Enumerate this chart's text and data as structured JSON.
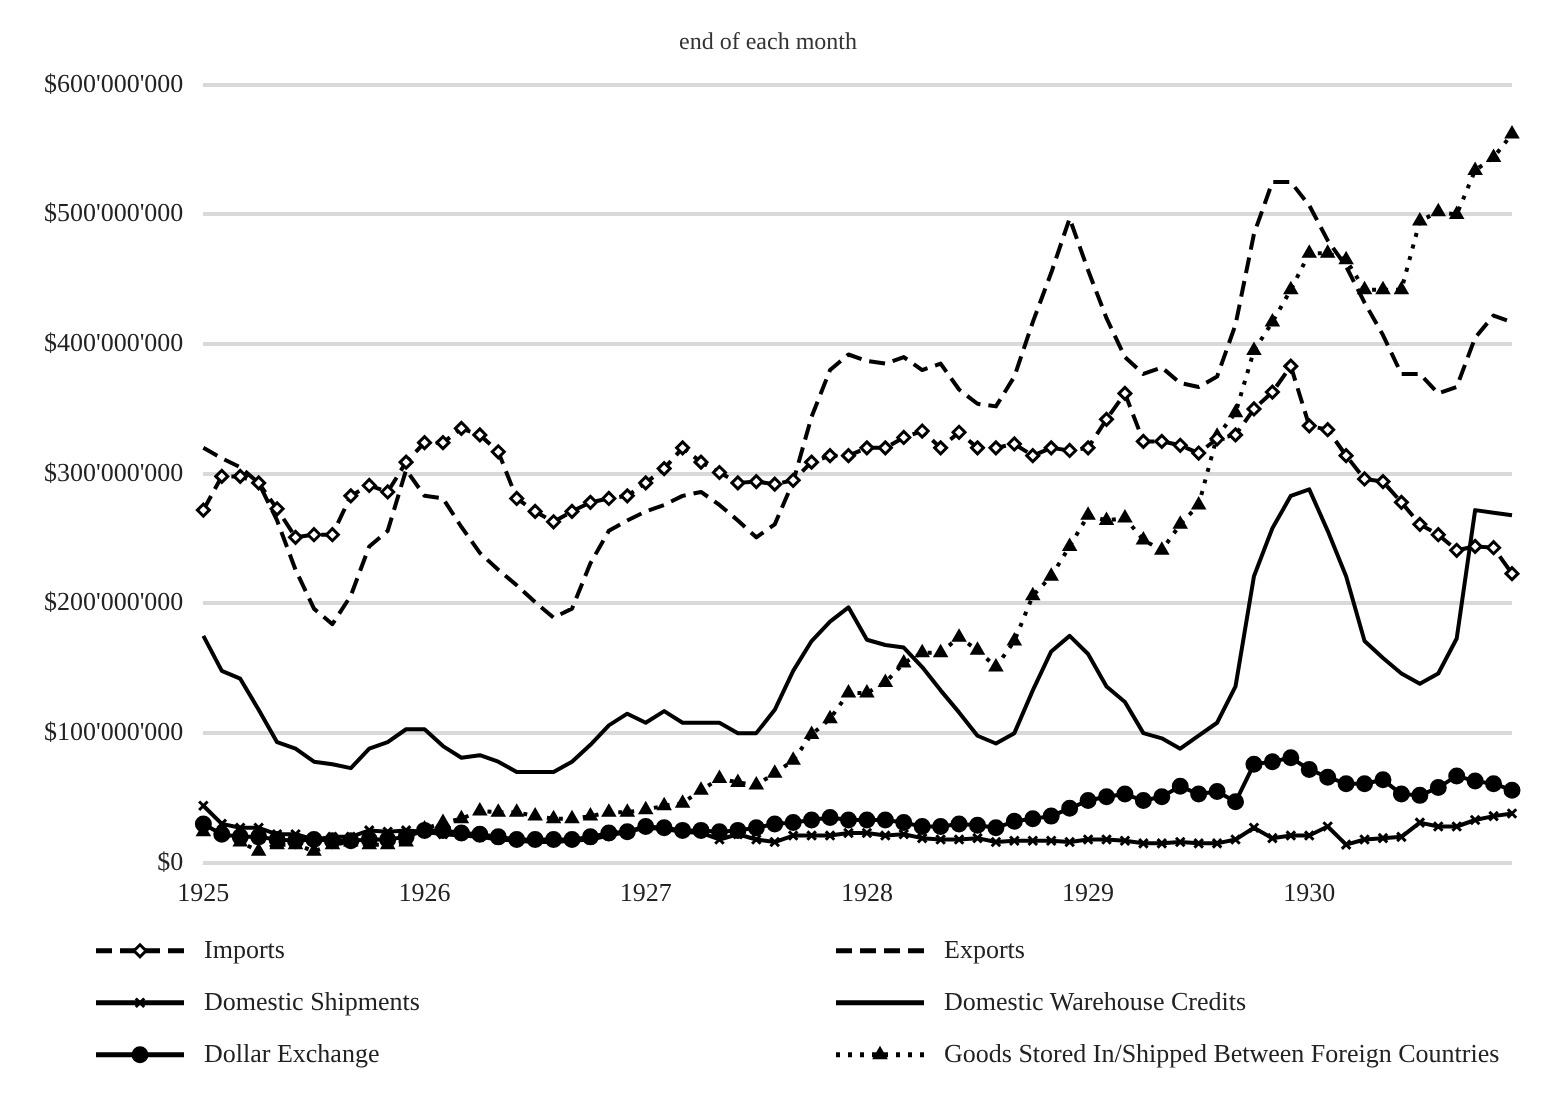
{
  "chart_data": {
    "type": "line",
    "title": "end of each month",
    "categories": [
      "1925",
      null,
      null,
      null,
      null,
      null,
      null,
      null,
      null,
      null,
      null,
      null,
      "1926",
      null,
      null,
      null,
      null,
      null,
      null,
      null,
      null,
      null,
      null,
      null,
      "1927",
      null,
      null,
      null,
      null,
      null,
      null,
      null,
      null,
      null,
      null,
      null,
      "1928",
      null,
      null,
      null,
      null,
      null,
      null,
      null,
      null,
      null,
      null,
      null,
      "1929",
      null,
      null,
      null,
      null,
      null,
      null,
      null,
      null,
      null,
      null,
      null,
      "1930",
      null,
      null,
      null,
      null,
      null,
      null,
      null,
      null,
      null,
      null,
      null
    ],
    "ylim": [
      0,
      600000000
    ],
    "yticks": [
      {
        "value": 0,
        "label": "$0"
      },
      {
        "value": 100000000,
        "label": "$100'000'000"
      },
      {
        "value": 200000000,
        "label": "$200'000'000"
      },
      {
        "value": 300000000,
        "label": "$300'000'000"
      },
      {
        "value": 400000000,
        "label": "$400'000'000"
      },
      {
        "value": 500000000,
        "label": "$500'000'000"
      },
      {
        "value": 600000000,
        "label": "$600'000'000"
      }
    ],
    "grid": "y",
    "legend": "bottom",
    "series": [
      {
        "name": "Imports",
        "color": "#000000",
        "marker": "diamond",
        "line_style": "dashed",
        "values": [
          272000000,
          298000000,
          298000000,
          293000000,
          273000000,
          251000000,
          253000000,
          253000000,
          283000000,
          291000000,
          286000000,
          309000000,
          324000000,
          324000000,
          335000000,
          330000000,
          317000000,
          281000000,
          271000000,
          263000000,
          271000000,
          278000000,
          281000000,
          283000000,
          293000000,
          304000000,
          320000000,
          309000000,
          301000000,
          293000000,
          294000000,
          292000000,
          295000000,
          309000000,
          314000000,
          314000000,
          320000000,
          320000000,
          328000000,
          333000000,
          320000000,
          332000000,
          320000000,
          320000000,
          323000000,
          314000000,
          320000000,
          318000000,
          320000000,
          342000000,
          362000000,
          325000000,
          325000000,
          322000000,
          316000000,
          327000000,
          330000000,
          350000000,
          363000000,
          383000000,
          337000000,
          334000000,
          314000000,
          296000000,
          294000000,
          278000000,
          261000000,
          253000000,
          241000000,
          244000000,
          243000000,
          223000000
        ]
      },
      {
        "name": "Exports",
        "color": "#000000",
        "marker": "none",
        "line_style": "dashed",
        "values": [
          320000000,
          312000000,
          305000000,
          293000000,
          264000000,
          226000000,
          196000000,
          184000000,
          206000000,
          244000000,
          256000000,
          303000000,
          283000000,
          281000000,
          259000000,
          239000000,
          226000000,
          214000000,
          201000000,
          189000000,
          196000000,
          231000000,
          256000000,
          264000000,
          271000000,
          276000000,
          283000000,
          286000000,
          276000000,
          264000000,
          251000000,
          261000000,
          294000000,
          344000000,
          380000000,
          392000000,
          387000000,
          385000000,
          390000000,
          380000000,
          385000000,
          365000000,
          354000000,
          352000000,
          375000000,
          417000000,
          455000000,
          497000000,
          457000000,
          420000000,
          390000000,
          377000000,
          382000000,
          370000000,
          367000000,
          375000000,
          415000000,
          485000000,
          525000000,
          525000000,
          507000000,
          480000000,
          460000000,
          432000000,
          407000000,
          377000000,
          377000000,
          362000000,
          367000000,
          405000000,
          422000000,
          417000000
        ]
      },
      {
        "name": "Domestic Shipments",
        "color": "#000000",
        "marker": "cross",
        "line_style": "solid",
        "values": [
          44000000,
          30000000,
          27000000,
          27000000,
          22000000,
          22000000,
          18000000,
          20000000,
          20000000,
          25000000,
          24000000,
          25000000,
          24000000,
          22000000,
          21000000,
          20000000,
          18000000,
          17000000,
          16000000,
          16000000,
          17000000,
          18000000,
          21000000,
          24000000,
          27000000,
          26000000,
          24000000,
          23000000,
          18000000,
          22000000,
          18000000,
          16000000,
          21000000,
          21000000,
          21000000,
          23000000,
          23000000,
          21000000,
          22000000,
          19000000,
          18000000,
          18000000,
          19000000,
          16000000,
          17000000,
          17000000,
          17000000,
          16000000,
          18000000,
          18000000,
          17000000,
          15000000,
          15000000,
          16000000,
          15000000,
          15000000,
          18000000,
          27000000,
          19000000,
          21000000,
          21000000,
          28000000,
          14000000,
          18000000,
          19000000,
          20000000,
          31000000,
          28000000,
          28000000,
          33000000,
          36000000,
          38000000
        ]
      },
      {
        "name": "Domestic Warehouse Credits",
        "color": "#000000",
        "marker": "none",
        "line_style": "solid",
        "values": [
          175000000,
          148000000,
          142000000,
          118000000,
          93000000,
          88000000,
          78000000,
          76000000,
          73000000,
          88000000,
          93000000,
          103000000,
          103000000,
          90000000,
          81000000,
          83000000,
          78000000,
          70000000,
          70000000,
          70000000,
          78000000,
          91000000,
          106000000,
          115000000,
          108000000,
          117000000,
          108000000,
          108000000,
          108000000,
          100000000,
          100000000,
          118000000,
          148000000,
          171000000,
          186000000,
          197000000,
          172000000,
          168000000,
          166000000,
          151000000,
          133000000,
          116000000,
          98000000,
          92000000,
          100000000,
          133000000,
          163000000,
          175000000,
          161000000,
          136000000,
          124000000,
          100000000,
          96000000,
          88000000,
          98000000,
          108000000,
          136000000,
          221000000,
          258000000,
          283000000,
          288000000,
          256000000,
          221000000,
          171000000,
          158000000,
          146000000,
          138000000,
          146000000,
          173000000,
          272000000,
          270000000,
          268000000
        ]
      },
      {
        "name": "Dollar Exchange",
        "color": "#000000",
        "marker": "circle",
        "line_style": "solid",
        "values": [
          30000000,
          22000000,
          20000000,
          20000000,
          18000000,
          17000000,
          18000000,
          17000000,
          17000000,
          18000000,
          18000000,
          20000000,
          25000000,
          25000000,
          23000000,
          22000000,
          20000000,
          18000000,
          18000000,
          18000000,
          18000000,
          20000000,
          23000000,
          24000000,
          28000000,
          27000000,
          25000000,
          25000000,
          24000000,
          25000000,
          27000000,
          30000000,
          31000000,
          33000000,
          35000000,
          33000000,
          33000000,
          33000000,
          31000000,
          28000000,
          28000000,
          30000000,
          29000000,
          27000000,
          32000000,
          34000000,
          36000000,
          42000000,
          48000000,
          51000000,
          53000000,
          48000000,
          51000000,
          59000000,
          53000000,
          55000000,
          47000000,
          76000000,
          78000000,
          81000000,
          72000000,
          66000000,
          61000000,
          61000000,
          64000000,
          53000000,
          52000000,
          58000000,
          67000000,
          63000000,
          61000000,
          56000000
        ]
      },
      {
        "name": "Goods Stored In/Shipped Between Foreign Countries",
        "color": "#000000",
        "marker": "triangle",
        "line_style": "dotted",
        "values": [
          24000000,
          24000000,
          16000000,
          9000000,
          14000000,
          14000000,
          9000000,
          14000000,
          16000000,
          14000000,
          14000000,
          16000000,
          26000000,
          31000000,
          34000000,
          40000000,
          39000000,
          39000000,
          36000000,
          34000000,
          34000000,
          36000000,
          39000000,
          39000000,
          41000000,
          44000000,
          46000000,
          56000000,
          65000000,
          62000000,
          60000000,
          69000000,
          79000000,
          99000000,
          111000000,
          131000000,
          131000000,
          139000000,
          154000000,
          162000000,
          162000000,
          174000000,
          164000000,
          151000000,
          171000000,
          206000000,
          221000000,
          244000000,
          268000000,
          264000000,
          266000000,
          249000000,
          241000000,
          261000000,
          276000000,
          329000000,
          347000000,
          395000000,
          417000000,
          442000000,
          470000000,
          470000000,
          465000000,
          442000000,
          442000000,
          442000000,
          495000000,
          502000000,
          500000000,
          534000000,
          544000000,
          562000000
        ]
      }
    ]
  }
}
